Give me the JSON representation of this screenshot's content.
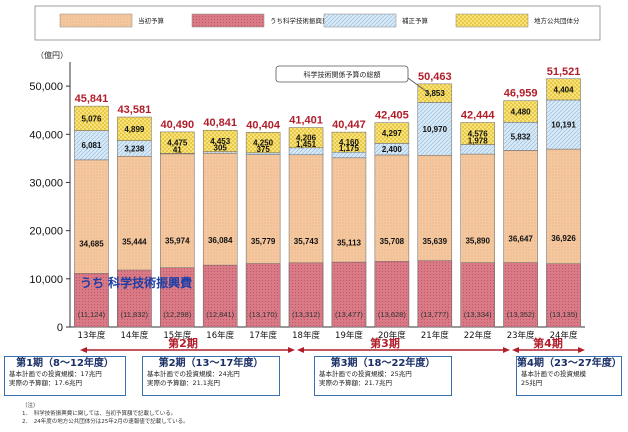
{
  "legend": [
    {
      "key": "initial",
      "label": "当初予算"
    },
    {
      "key": "promotion",
      "label": "うち科学技術振興費"
    },
    {
      "key": "supplementary",
      "label": "補正予算"
    },
    {
      "key": "local",
      "label": "地方公共団体分"
    }
  ],
  "colors": {
    "initial": "#f5c8a0",
    "promotion": "#d97a86",
    "supplementary": "#cfe4f5",
    "local": "#f7e37a",
    "total_text": "#b01e2a",
    "axis": "#333333"
  },
  "unit_label": "（億円）",
  "callout_label": "科学技術関係予算の総額",
  "overlay_label": "うち 科学技術振興費",
  "periods": [
    {
      "label": "第2期"
    },
    {
      "label": "第3期"
    },
    {
      "label": "第4期"
    }
  ],
  "phase_boxes": [
    {
      "title": "第1期（8～12年度）",
      "lines": [
        "基本計画での投資規模：17兆円",
        "実際の予算額：17.6兆円"
      ]
    },
    {
      "title": "第2期（13～17年度）",
      "lines": [
        "基本計画での投資規模：24兆円",
        "実際の予算額：21.1兆円"
      ]
    },
    {
      "title": "第3期（18～22年度）",
      "lines": [
        "基本計画での投資規模：25兆円",
        "実際の予算額：21.7兆円"
      ]
    },
    {
      "title": "第4期（23～27年度）",
      "lines": [
        "基本計画での投資規模",
        "25兆円"
      ]
    }
  ],
  "notes": [
    "（注）",
    "1．　科学技術振興費に関しては、当初予算額で記載している。",
    "2．　24年度の地方公共団体分は25年2月の速報値で記載している。"
  ],
  "chart_data": {
    "type": "bar",
    "stacked": true,
    "categories": [
      "13年度",
      "14年度",
      "15年度",
      "16年度",
      "17年度",
      "18年度",
      "19年度",
      "20年度",
      "21年度",
      "22年度",
      "23年度",
      "24年度"
    ],
    "series": [
      {
        "name": "当初予算",
        "values": [
          34685,
          35444,
          35974,
          36084,
          35779,
          35743,
          35113,
          35708,
          35639,
          35890,
          36647,
          36926
        ]
      },
      {
        "name": "補正予算",
        "values": [
          6081,
          3238,
          41,
          305,
          375,
          1451,
          1175,
          2400,
          10970,
          1978,
          5832,
          10191
        ]
      },
      {
        "name": "地方公共団体分",
        "values": [
          5076,
          4899,
          4475,
          4453,
          4250,
          4206,
          4160,
          4297,
          3853,
          4576,
          4480,
          4404
        ]
      }
    ],
    "promotion_values": [
      11124,
      11832,
      12298,
      12841,
      13170,
      13312,
      13477,
      13628,
      13777,
      13334,
      13352,
      13135
    ],
    "promotion_labels": [
      "(11,124)",
      "(11,832)",
      "(12,298)",
      "(12,841)",
      "(13,170)",
      "(13,312)",
      "(13,477)",
      "(13,628)",
      "(13,777)",
      "(13,334)",
      "(13,352)",
      "(13,135)"
    ],
    "segment_labels": {
      "initial": [
        "34,685",
        "35,444",
        "35,974",
        "36,084",
        "35,779",
        "35,743",
        "35,113",
        "35,708",
        "35,639",
        "35,890",
        "36,647",
        "36,926"
      ],
      "supplementary": [
        "6,081",
        "3,238",
        "41",
        "305",
        "375",
        "1,451",
        "1,175",
        "2,400",
        "10,970",
        "1,978",
        "5,832",
        "10,191"
      ],
      "local": [
        "5,076",
        "4,899",
        "4,475",
        "4,453",
        "4,250",
        "4,206",
        "4,160",
        "4,297",
        "3,853",
        "4,576",
        "4,480",
        "4,404"
      ]
    },
    "totals": [
      45841,
      43581,
      40490,
      40841,
      40404,
      41401,
      40447,
      42405,
      50463,
      42444,
      46959,
      51521
    ],
    "total_labels": [
      "45,841",
      "43,581",
      "40,490",
      "40,841",
      "40,404",
      "41,401",
      "40,447",
      "42,405",
      "50,463",
      "42,444",
      "46,959",
      "51,521"
    ],
    "ylim": [
      0,
      55000
    ],
    "yticks": [
      0,
      10000,
      20000,
      30000,
      40000,
      50000
    ],
    "ytick_labels": [
      "0",
      "10,000",
      "20,000",
      "30,000",
      "40,000",
      "50,000"
    ],
    "ylabel": "（億円）",
    "grid": false,
    "legend_position": "top"
  }
}
